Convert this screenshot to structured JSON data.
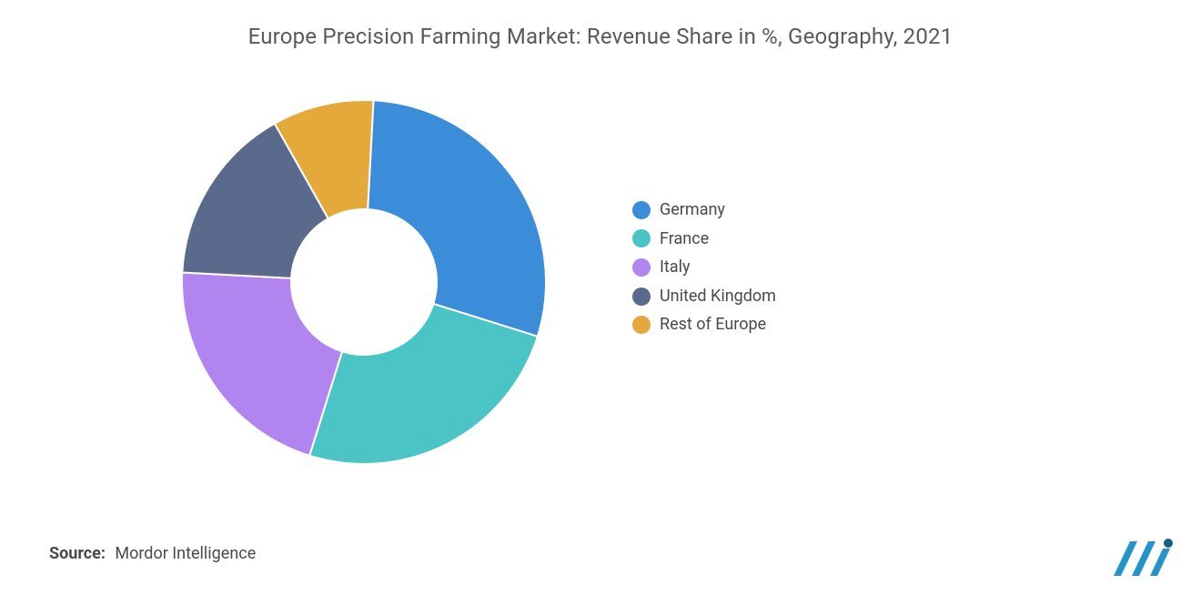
{
  "title": "Europe Precision Farming Market: Revenue Share in %, Geography, 2021",
  "chart": {
    "type": "donut",
    "start_angle_deg": 3,
    "inner_radius_ratio": 0.4,
    "background_color": "#ffffff",
    "slice_stroke": "#ffffff",
    "slice_stroke_width": 2,
    "series": [
      {
        "label": "Germany",
        "value": 29,
        "color": "#3b8cd9"
      },
      {
        "label": "France",
        "value": 25,
        "color": "#4ac4c4"
      },
      {
        "label": "Italy",
        "value": 21,
        "color": "#b184f0"
      },
      {
        "label": "United Kingdom",
        "value": 16,
        "color": "#5a6a8c"
      },
      {
        "label": "Rest of Europe",
        "value": 9,
        "color": "#e5a83b"
      }
    ],
    "title_fontsize": 24,
    "title_color": "#5a5a5a",
    "legend_fontsize": 18,
    "legend_text_color": "#4a4a4a",
    "legend_swatch_radius": 10
  },
  "source": {
    "label": "Source:",
    "text": "Mordor Intelligence"
  },
  "logo": {
    "bar_color": "#2393c9",
    "dot_color": "#145f85"
  }
}
